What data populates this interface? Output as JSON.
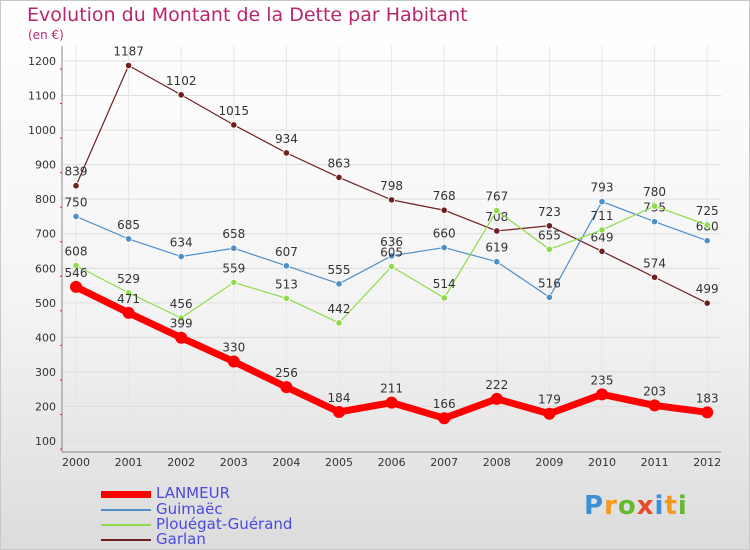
{
  "chart_data": {
    "type": "line",
    "title": "Evolution du Montant de la Dette par Habitant",
    "unit_label": "(en €)",
    "xlabel": "",
    "ylabel": "",
    "ylim": [
      100,
      1250
    ],
    "yticks": [
      100,
      200,
      300,
      400,
      500,
      600,
      700,
      800,
      900,
      1000,
      1100,
      1200
    ],
    "grid": true,
    "legend_position": "bottom-left",
    "x": [
      "2000",
      "2001",
      "2002",
      "2003",
      "2004",
      "2005",
      "2006",
      "2007",
      "2008",
      "2009",
      "2010",
      "2011",
      "2012"
    ],
    "series": [
      {
        "name": "LANMEUR",
        "color": "#ff0000",
        "values": [
          546,
          471,
          399,
          330,
          256,
          184,
          211,
          166,
          222,
          179,
          235,
          203,
          183
        ]
      },
      {
        "name": "Guimaëc",
        "color": "#4f8fc7",
        "values": [
          750,
          685,
          634,
          658,
          607,
          555,
          636,
          660,
          619,
          516,
          793,
          735,
          680
        ]
      },
      {
        "name": "Plouégat-Guérand",
        "color": "#8fda4a",
        "values": [
          608,
          529,
          456,
          559,
          513,
          442,
          605,
          514,
          767,
          655,
          711,
          780,
          725
        ]
      },
      {
        "name": "Garlan",
        "color": "#6e1f1f",
        "values": [
          839,
          1187,
          1102,
          1015,
          934,
          863,
          798,
          768,
          708,
          723,
          649,
          574,
          499
        ]
      }
    ]
  },
  "logo": {
    "text": "Proxiti"
  }
}
